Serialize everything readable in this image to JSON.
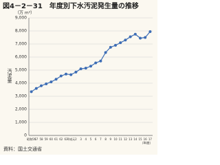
{
  "chart_data": {
    "type": "line",
    "title": "図4－2－31　年度別下水汚泥発生量の推移",
    "y_unit": "（万 m³）",
    "y_label": "汚泥量",
    "x_unit": "（年度）",
    "source": "資料：国土交通省",
    "categories": [
      "昭和56",
      "57",
      "58",
      "59",
      "60",
      "61",
      "62",
      "63",
      "平成元",
      "2",
      "3",
      "4",
      "5",
      "6",
      "7",
      "8",
      "9",
      "10",
      "11",
      "12",
      "13",
      "14",
      "15",
      "16",
      "17"
    ],
    "series": [
      {
        "name": "下水汚泥発生量",
        "color": "#3d6db5",
        "values": [
          3350,
          3600,
          3800,
          3950,
          4100,
          4300,
          4550,
          4700,
          4650,
          4850,
          5100,
          5150,
          5300,
          5550,
          5700,
          6350,
          6750,
          6900,
          7100,
          7300,
          7550,
          7750,
          7450,
          7500,
          7950
        ]
      }
    ],
    "ylim": [
      0,
      9000
    ],
    "yticks": [
      0,
      {
        "value": 1000,
        "label": "1,000"
      },
      {
        "value": 2000,
        "label": "2,000"
      },
      {
        "value": 3000,
        "label": "3,000"
      },
      {
        "value": 4000,
        "label": "4,000"
      },
      {
        "value": 5000,
        "label": "5,000"
      },
      {
        "value": 6000,
        "label": "6,000"
      },
      {
        "value": 7000,
        "label": "7,000"
      },
      {
        "value": 8000,
        "label": "8,000"
      },
      {
        "value": 9000,
        "label": "9,000"
      }
    ],
    "grid": true
  }
}
